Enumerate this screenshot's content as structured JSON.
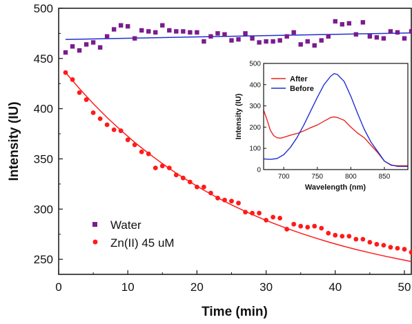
{
  "chart_data": [
    {
      "type": "scatter",
      "xlabel": "Time (min)",
      "ylabel": "Intensity (IU)",
      "xlim": [
        0,
        51
      ],
      "ylim": [
        235,
        500
      ],
      "x_ticks": [
        0,
        10,
        20,
        30,
        40,
        50
      ],
      "y_ticks": [
        250,
        300,
        350,
        400,
        450,
        500
      ],
      "legend_position": "lower-left",
      "series": [
        {
          "name": "Water",
          "marker": "square",
          "color": "#7a1b8e",
          "x": [
            1,
            2,
            3,
            4,
            5,
            6,
            7,
            8,
            9,
            10,
            11,
            12,
            13,
            14,
            15,
            16,
            17,
            18,
            19,
            20,
            21,
            22,
            23,
            24,
            25,
            26,
            27,
            28,
            29,
            30,
            31,
            32,
            33,
            34,
            35,
            36,
            37,
            38,
            39,
            40,
            41,
            42,
            43,
            44,
            45,
            46,
            47,
            48,
            49,
            50,
            51
          ],
          "y": [
            456,
            462,
            458,
            464,
            466,
            461,
            472,
            479,
            483,
            482,
            470,
            478,
            477,
            476,
            483,
            478,
            477,
            477,
            476,
            476,
            467,
            472,
            475,
            474,
            468,
            469,
            475,
            470,
            466,
            467,
            467,
            468,
            472,
            476,
            464,
            467,
            463,
            468,
            472,
            487,
            484,
            485,
            474,
            486,
            472,
            471,
            470,
            477,
            476,
            470,
            477
          ]
        },
        {
          "name": "Zn(II) 45 uM",
          "marker": "circle",
          "color": "#ff1a1a",
          "x": [
            1,
            2,
            3,
            4,
            5,
            6,
            7,
            8,
            9,
            10,
            11,
            12,
            13,
            14,
            15,
            16,
            17,
            18,
            19,
            20,
            21,
            22,
            23,
            24,
            25,
            26,
            27,
            28,
            29,
            30,
            31,
            32,
            33,
            34,
            35,
            36,
            37,
            38,
            39,
            40,
            41,
            42,
            43,
            44,
            45,
            46,
            47,
            48,
            49,
            50,
            51
          ],
          "y": [
            436,
            429,
            416,
            409,
            396,
            390,
            384,
            379,
            378,
            369,
            364,
            357,
            355,
            341,
            343,
            341,
            334,
            331,
            327,
            322,
            322,
            316,
            311,
            309,
            308,
            306,
            297,
            296,
            296,
            289,
            292,
            291,
            280,
            285,
            283,
            282,
            283,
            281,
            276,
            274,
            273,
            273,
            270,
            270,
            267,
            265,
            264,
            262,
            261,
            260,
            257
          ]
        },
        {
          "name": "",
          "style": "line",
          "color": "#1f2fd0",
          "x": [
            1,
            51
          ],
          "y": [
            469,
            475.5
          ]
        },
        {
          "name": "",
          "style": "line",
          "color": "#ff1a1a",
          "fit": "exponential",
          "x": [
            1,
            3,
            5,
            7,
            9,
            11,
            13,
            15,
            17,
            19,
            21,
            23,
            25,
            27,
            29,
            31,
            33,
            35,
            37,
            39,
            41,
            43,
            45,
            47,
            49,
            51
          ],
          "y": [
            436.0,
            420.0,
            405.0,
            391.2,
            378.4,
            366.5,
            355.5,
            345.3,
            335.8,
            327.0,
            318.8,
            311.2,
            304.2,
            297.7,
            291.6,
            286.0,
            280.8,
            276.0,
            271.5,
            267.3,
            263.4,
            259.8,
            256.5,
            253.4,
            250.5,
            247.8
          ]
        }
      ]
    },
    {
      "type": "line",
      "xlabel": "Wavelength (nm)",
      "ylabel": "Intensity (IU)",
      "xlim": [
        670,
        885
      ],
      "ylim": [
        0,
        500
      ],
      "x_ticks": [
        700,
        750,
        800,
        850
      ],
      "y_ticks": [
        0,
        100,
        200,
        300,
        400,
        500
      ],
      "legend_position": "top-left",
      "series": [
        {
          "name": "After",
          "color": "#e8241f",
          "x": [
            670,
            675,
            680,
            685,
            690,
            695,
            700,
            710,
            720,
            730,
            740,
            750,
            760,
            770,
            775,
            780,
            790,
            800,
            810,
            820,
            830,
            840,
            850,
            860,
            870,
            880,
            885
          ],
          "y": [
            280,
            235,
            185,
            160,
            150,
            148,
            152,
            162,
            170,
            182,
            197,
            210,
            228,
            245,
            248,
            245,
            232,
            200,
            172,
            150,
            115,
            80,
            40,
            20,
            18,
            18,
            18
          ]
        },
        {
          "name": "Before",
          "color": "#1f2fd0",
          "x": [
            670,
            680,
            690,
            700,
            710,
            720,
            730,
            740,
            750,
            760,
            770,
            775,
            780,
            790,
            800,
            810,
            820,
            830,
            840,
            850,
            860,
            870,
            880,
            885
          ],
          "y": [
            50,
            48,
            52,
            70,
            105,
            152,
            210,
            275,
            340,
            400,
            440,
            452,
            448,
            415,
            345,
            265,
            190,
            130,
            85,
            40,
            22,
            15,
            15,
            15
          ]
        }
      ]
    }
  ],
  "legend_main": {
    "water": "Water",
    "zn": "Zn(II) 45 uM"
  },
  "legend_inset": {
    "after": "After",
    "before": "Before"
  }
}
